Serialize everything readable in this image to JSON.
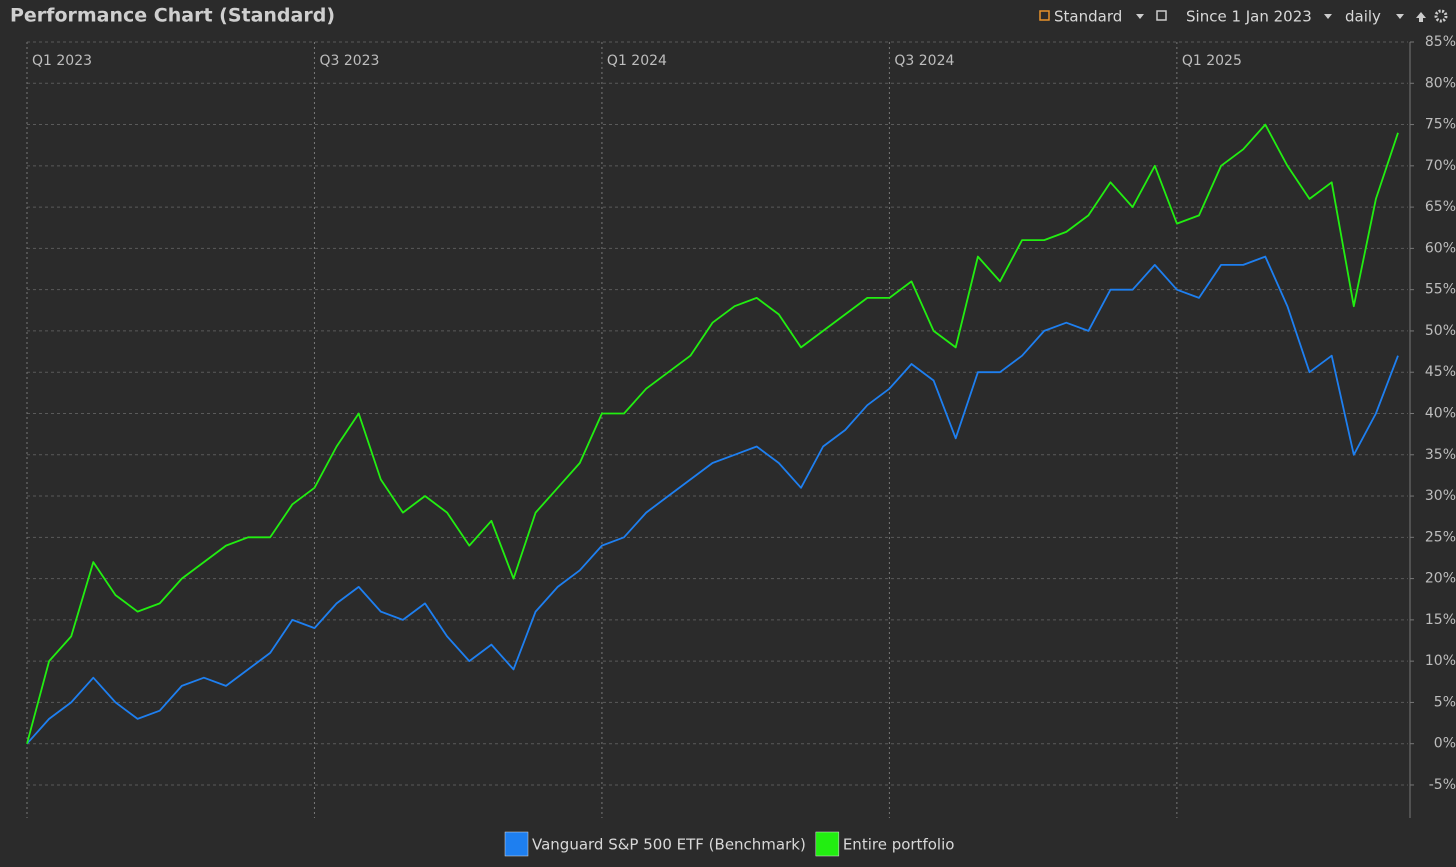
{
  "toolbar": {
    "view": "Standard",
    "period": "Since 1 Jan 2023",
    "interval": "daily"
  },
  "chart_data": {
    "type": "line",
    "title": "Performance Chart (Standard)",
    "categories": [
      "Q1 2023",
      null,
      null,
      null,
      null,
      null,
      null,
      null,
      null,
      null,
      null,
      null,
      null,
      "Q3 2023",
      null,
      null,
      null,
      null,
      null,
      null,
      null,
      null,
      null,
      null,
      null,
      null,
      "Q1 2024",
      null,
      null,
      null,
      null,
      null,
      null,
      null,
      null,
      null,
      null,
      null,
      null,
      "Q3 2024",
      null,
      null,
      null,
      null,
      null,
      null,
      null,
      null,
      null,
      null,
      null,
      null,
      "Q1 2025",
      null,
      null,
      null,
      null,
      null,
      null,
      null,
      null,
      null,
      null
    ],
    "series": [
      {
        "name": "Vanguard S&P 500 ETF (Benchmark)",
        "color": "#1e7ff0",
        "values": [
          0,
          3,
          5,
          8,
          5,
          3,
          4,
          7,
          8,
          7,
          9,
          11,
          15,
          14,
          17,
          19,
          16,
          15,
          17,
          13,
          10,
          12,
          9,
          16,
          19,
          21,
          24,
          25,
          28,
          30,
          32,
          34,
          35,
          36,
          34,
          31,
          36,
          38,
          41,
          43,
          46,
          44,
          37,
          45,
          45,
          47,
          50,
          51,
          50,
          55,
          55,
          58,
          55,
          54,
          58,
          58,
          59,
          53,
          45,
          47,
          35,
          40,
          47
        ]
      },
      {
        "name": "Entire portfolio",
        "color": "#22ee11",
        "values": [
          0,
          10,
          13,
          22,
          18,
          16,
          17,
          20,
          22,
          24,
          25,
          25,
          29,
          31,
          36,
          40,
          32,
          28,
          30,
          28,
          24,
          27,
          20,
          28,
          31,
          34,
          40,
          40,
          43,
          45,
          47,
          51,
          53,
          54,
          52,
          48,
          50,
          52,
          54,
          54,
          56,
          50,
          48,
          59,
          56,
          61,
          61,
          62,
          64,
          68,
          65,
          70,
          63,
          64,
          70,
          72,
          75,
          70,
          66,
          68,
          53,
          66,
          74
        ]
      }
    ],
    "ylim": [
      -9,
      85
    ],
    "yticks": [
      {
        "value": -5,
        "label": "-5%"
      },
      {
        "value": 0,
        "label": "0%"
      },
      {
        "value": 5,
        "label": "5%"
      },
      {
        "value": 10,
        "label": "10%"
      },
      {
        "value": 15,
        "label": "15%"
      },
      {
        "value": 20,
        "label": "20%"
      },
      {
        "value": 25,
        "label": "25%"
      },
      {
        "value": 30,
        "label": "30%"
      },
      {
        "value": 35,
        "label": "35%"
      },
      {
        "value": 40,
        "label": "40%"
      },
      {
        "value": 45,
        "label": "45%"
      },
      {
        "value": 50,
        "label": "50%"
      },
      {
        "value": 55,
        "label": "55%"
      },
      {
        "value": 60,
        "label": "60%"
      },
      {
        "value": 65,
        "label": "65%"
      },
      {
        "value": 70,
        "label": "70%"
      },
      {
        "value": 75,
        "label": "75%"
      },
      {
        "value": 80,
        "label": "80%"
      },
      {
        "value": 85,
        "label": "85%"
      }
    ],
    "grid": true,
    "legend": "bottom"
  }
}
